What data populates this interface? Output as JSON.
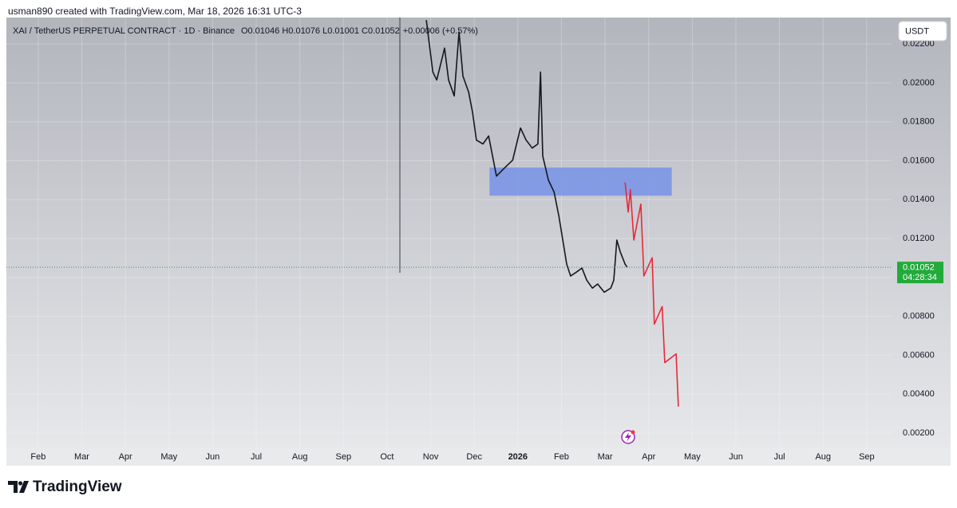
{
  "attribution": "usman890 created with TradingView.com, Mar 18, 2026 16:31 UTC-3",
  "footer": {
    "brand": "TradingView"
  },
  "chart_data": {
    "type": "line",
    "title": "XAI / TetherUS PERPETUAL CONTRACT · 1D · Binance",
    "ohlc": "O0.01046 H0.01076 L0.01001 C0.01052",
    "change": "+0.00006 (+0.57%)",
    "currency": "USDT",
    "last_price": 0.01052,
    "countdown": "04:28:34",
    "last_price_color": "#22ab3a",
    "grid": true,
    "xlim": [
      1.27,
      21.57
    ],
    "ylim": [
      0.00122,
      0.02336
    ],
    "xticks": [
      {
        "value": 2,
        "label": "Feb"
      },
      {
        "value": 3,
        "label": "Mar"
      },
      {
        "value": 4,
        "label": "Apr"
      },
      {
        "value": 5,
        "label": "May"
      },
      {
        "value": 6,
        "label": "Jun"
      },
      {
        "value": 7,
        "label": "Jul"
      },
      {
        "value": 8,
        "label": "Aug"
      },
      {
        "value": 9,
        "label": "Sep"
      },
      {
        "value": 10,
        "label": "Oct"
      },
      {
        "value": 11,
        "label": "Nov"
      },
      {
        "value": 12,
        "label": "Dec"
      },
      {
        "value": 13,
        "label": "2026"
      },
      {
        "value": 14,
        "label": "Feb"
      },
      {
        "value": 15,
        "label": "Mar"
      },
      {
        "value": 16,
        "label": "Apr"
      },
      {
        "value": 17,
        "label": "May"
      },
      {
        "value": 18,
        "label": "Jun"
      },
      {
        "value": 19,
        "label": "Jul"
      },
      {
        "value": 20,
        "label": "Aug"
      },
      {
        "value": 21,
        "label": "Sep"
      }
    ],
    "yticks": [
      {
        "value": 0.002,
        "label": "0.00200"
      },
      {
        "value": 0.004,
        "label": "0.00400"
      },
      {
        "value": 0.006,
        "label": "0.00600"
      },
      {
        "value": 0.008,
        "label": "0.00800"
      },
      {
        "value": 0.01,
        "label": "0.01000"
      },
      {
        "value": 0.012,
        "label": "0.01200"
      },
      {
        "value": 0.014,
        "label": "0.01400"
      },
      {
        "value": 0.016,
        "label": "0.01600"
      },
      {
        "value": 0.018,
        "label": "0.01800"
      },
      {
        "value": 0.02,
        "label": "0.02000"
      },
      {
        "value": 0.022,
        "label": "0.02200"
      }
    ],
    "zone": {
      "x": [
        12.35,
        16.53
      ],
      "y": [
        0.0142,
        0.01565
      ],
      "color": "#7b96e6"
    },
    "series": [
      {
        "color": "#16171c",
        "x": [
          10.9,
          11.05,
          11.14,
          11.32,
          11.41,
          11.54,
          11.65,
          11.74,
          11.87,
          11.96,
          12.05,
          12.2,
          12.33,
          12.51,
          12.69,
          12.88,
          13.06,
          13.19,
          13.33,
          13.46,
          13.52,
          13.57,
          13.7,
          13.83,
          13.94,
          14.03,
          14.12,
          14.21,
          14.34,
          14.47,
          14.58,
          14.71,
          14.83,
          14.98,
          15.13,
          15.2,
          15.27,
          15.35,
          15.46,
          15.51
        ],
        "values": [
          0.02323,
          0.02056,
          0.02015,
          0.02179,
          0.02015,
          0.01933,
          0.02262,
          0.02035,
          0.01953,
          0.0185,
          0.01706,
          0.01686,
          0.01727,
          0.01521,
          0.01562,
          0.01603,
          0.01768,
          0.01706,
          0.01665,
          0.01686,
          0.02056,
          0.01624,
          0.015,
          0.01439,
          0.01315,
          0.01192,
          0.01068,
          0.01007,
          0.01027,
          0.01048,
          0.00986,
          0.00945,
          0.00966,
          0.00924,
          0.00945,
          0.00986,
          0.01192,
          0.0113,
          0.01068,
          0.01052
        ]
      },
      {
        "color": "#e8293a",
        "x": [
          15.46,
          15.53,
          15.58,
          15.66,
          15.82,
          15.89,
          16.08,
          16.13,
          16.31,
          16.37,
          16.63,
          16.68
        ],
        "values": [
          0.01488,
          0.01336,
          0.01451,
          0.01192,
          0.01377,
          0.01007,
          0.01101,
          0.0076,
          0.0085,
          0.00562,
          0.00607,
          0.00336
        ]
      }
    ]
  }
}
